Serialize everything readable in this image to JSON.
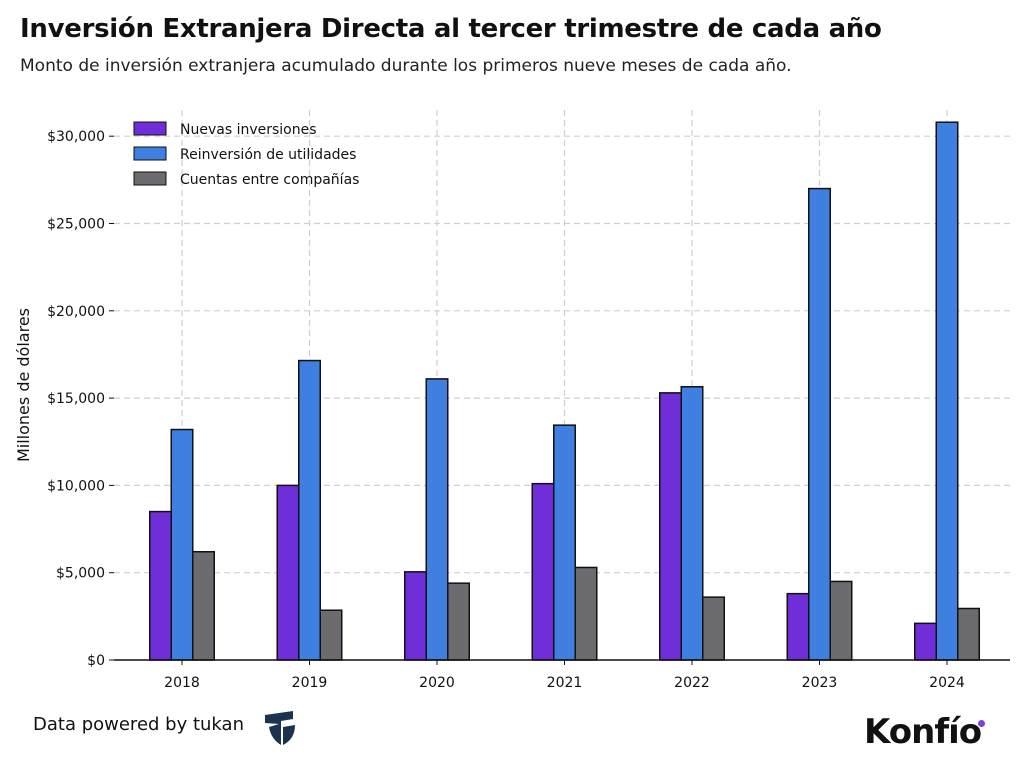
{
  "header": {
    "title": "Inversión Extranjera Directa al tercer trimestre de cada año",
    "subtitle": "Monto de inversión extranjera acumulado durante los primeros nueve meses de cada año."
  },
  "footer": {
    "powered_by": "Data powered by tukan",
    "brand": "Konfío"
  },
  "chart_data": {
    "type": "bar",
    "title": "Inversión Extranjera Directa al tercer trimestre de cada año",
    "subtitle": "Monto de inversión extranjera acumulado durante los primeros nueve meses de cada año.",
    "xlabel": "",
    "ylabel": "Millones de dólares",
    "ylim": [
      0,
      31500
    ],
    "yticks": [
      0,
      5000,
      10000,
      15000,
      20000,
      25000,
      30000
    ],
    "ytick_labels": [
      "$0",
      "$5,000",
      "$10,000",
      "$15,000",
      "$20,000",
      "$25,000",
      "$30,000"
    ],
    "categories": [
      "2018",
      "2019",
      "2020",
      "2021",
      "2022",
      "2023",
      "2024"
    ],
    "grid": true,
    "legend_position": "top-left",
    "series": [
      {
        "name": "Nuevas inversiones",
        "color": "#6f2ed8",
        "values": [
          8500,
          10000,
          5050,
          10100,
          15300,
          3800,
          2100
        ]
      },
      {
        "name": "Reinversión de utilidades",
        "color": "#3f7fe0",
        "values": [
          13200,
          17150,
          16100,
          13450,
          15650,
          27000,
          30800
        ]
      },
      {
        "name": "Cuentas entre compañías",
        "color": "#6b6b70",
        "values": [
          6200,
          2850,
          4400,
          5300,
          3600,
          4500,
          2950
        ]
      }
    ]
  }
}
